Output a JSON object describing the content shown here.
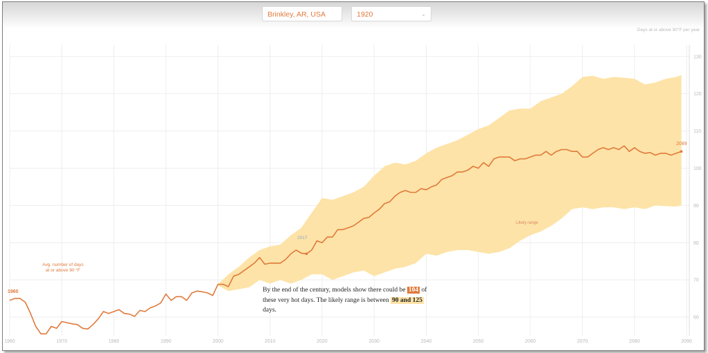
{
  "controls": {
    "location": "Brinkley, AR, USA",
    "year": "1920"
  },
  "chart_data": {
    "type": "line",
    "ylabel": "Days at or above 90°F per year",
    "xlim": [
      1960,
      2090
    ],
    "ylim": [
      55,
      132
    ],
    "x_ticks": [
      "1960",
      "1970",
      "1980",
      "1990",
      "2000",
      "2010",
      "2020",
      "2030",
      "2040",
      "2050",
      "2060",
      "2070",
      "2080",
      "2090"
    ],
    "y_ticks": [
      "60",
      "70",
      "80",
      "90",
      "100",
      "110",
      "120",
      "130"
    ],
    "series_label": "Avg. number of days at or above 90 °F",
    "band_label": "Likely range",
    "start_label": "1960",
    "mid_label": "2017",
    "end_label": "2089",
    "line": [
      [
        1960,
        64.5
      ],
      [
        1961,
        65
      ],
      [
        1962,
        65
      ],
      [
        1963,
        64
      ],
      [
        1964,
        61
      ],
      [
        1965,
        57.5
      ],
      [
        1966,
        55.5
      ],
      [
        1967,
        55.5
      ],
      [
        1968,
        57.5
      ],
      [
        1969,
        57
      ],
      [
        1970,
        58.8
      ],
      [
        1971,
        58.5
      ],
      [
        1972,
        58.2
      ],
      [
        1973,
        58
      ],
      [
        1974,
        57
      ],
      [
        1975,
        56.8
      ],
      [
        1976,
        58
      ],
      [
        1977,
        59.5
      ],
      [
        1978,
        61.5
      ],
      [
        1979,
        61
      ],
      [
        1980,
        61.5
      ],
      [
        1981,
        62
      ],
      [
        1982,
        61
      ],
      [
        1983,
        60.8
      ],
      [
        1984,
        60.2
      ],
      [
        1985,
        61.8
      ],
      [
        1986,
        61.5
      ],
      [
        1987,
        62.5
      ],
      [
        1988,
        63
      ],
      [
        1989,
        63.8
      ],
      [
        1990,
        66.2
      ],
      [
        1991,
        64.5
      ],
      [
        1992,
        65.5
      ],
      [
        1993,
        65.5
      ],
      [
        1994,
        64.5
      ],
      [
        1995,
        66.5
      ],
      [
        1996,
        67
      ],
      [
        1997,
        66.8
      ],
      [
        1998,
        66.5
      ],
      [
        1999,
        65.8
      ],
      [
        2000,
        68.8
      ],
      [
        2001,
        68.8
      ],
      [
        2002,
        68.2
      ],
      [
        2003,
        71
      ],
      [
        2004,
        71.5
      ],
      [
        2005,
        72.5
      ],
      [
        2006,
        73.5
      ],
      [
        2007,
        74.5
      ],
      [
        2008,
        76
      ],
      [
        2009,
        74.2
      ],
      [
        2010,
        74.5
      ],
      [
        2011,
        74.5
      ],
      [
        2012,
        74.5
      ],
      [
        2013,
        75.5
      ],
      [
        2014,
        77
      ],
      [
        2015,
        78
      ],
      [
        2016,
        77.2
      ],
      [
        2017,
        77
      ],
      [
        2018,
        78
      ],
      [
        2019,
        80.5
      ],
      [
        2020,
        80
      ],
      [
        2021,
        81.5
      ],
      [
        2022,
        81.5
      ],
      [
        2023,
        83.5
      ],
      [
        2024,
        83.5
      ],
      [
        2025,
        84
      ],
      [
        2026,
        84.5
      ],
      [
        2027,
        85.5
      ],
      [
        2028,
        86.5
      ],
      [
        2029,
        86.8
      ],
      [
        2030,
        88
      ],
      [
        2031,
        89
      ],
      [
        2032,
        90.5
      ],
      [
        2033,
        91
      ],
      [
        2034,
        92.5
      ],
      [
        2035,
        93.5
      ],
      [
        2036,
        94
      ],
      [
        2037,
        93.5
      ],
      [
        2038,
        93.5
      ],
      [
        2039,
        94.5
      ],
      [
        2040,
        94.2
      ],
      [
        2041,
        95
      ],
      [
        2042,
        95.5
      ],
      [
        2043,
        97
      ],
      [
        2044,
        97.5
      ],
      [
        2045,
        98
      ],
      [
        2046,
        99
      ],
      [
        2047,
        99
      ],
      [
        2048,
        99.5
      ],
      [
        2049,
        100.5
      ],
      [
        2050,
        100
      ],
      [
        2051,
        101.5
      ],
      [
        2052,
        100.5
      ],
      [
        2053,
        102.5
      ],
      [
        2054,
        103
      ],
      [
        2055,
        103
      ],
      [
        2056,
        103
      ],
      [
        2057,
        102
      ],
      [
        2058,
        102.5
      ],
      [
        2059,
        102.5
      ],
      [
        2060,
        103
      ],
      [
        2061,
        103.5
      ],
      [
        2062,
        103.5
      ],
      [
        2063,
        104.5
      ],
      [
        2064,
        103.5
      ],
      [
        2065,
        104.5
      ],
      [
        2066,
        105
      ],
      [
        2067,
        105
      ],
      [
        2068,
        104.5
      ],
      [
        2069,
        104.5
      ],
      [
        2070,
        103
      ],
      [
        2071,
        103
      ],
      [
        2072,
        104
      ],
      [
        2073,
        105
      ],
      [
        2074,
        105.5
      ],
      [
        2075,
        105
      ],
      [
        2076,
        105.5
      ],
      [
        2077,
        105
      ],
      [
        2078,
        106
      ],
      [
        2079,
        104.5
      ],
      [
        2080,
        105.5
      ],
      [
        2081,
        104.5
      ],
      [
        2082,
        104
      ],
      [
        2083,
        104.2
      ],
      [
        2084,
        103.5
      ],
      [
        2085,
        104
      ],
      [
        2086,
        104
      ],
      [
        2087,
        103.5
      ],
      [
        2088,
        104
      ],
      [
        2089,
        104.5
      ]
    ],
    "band_low": [
      [
        2000,
        68.5
      ],
      [
        2002,
        67
      ],
      [
        2004,
        67.5
      ],
      [
        2006,
        68
      ],
      [
        2008,
        70
      ],
      [
        2010,
        69
      ],
      [
        2012,
        70
      ],
      [
        2014,
        69
      ],
      [
        2016,
        70
      ],
      [
        2018,
        71.5
      ],
      [
        2020,
        71.5
      ],
      [
        2022,
        70
      ],
      [
        2024,
        71
      ],
      [
        2026,
        72
      ],
      [
        2028,
        72.5
      ],
      [
        2030,
        71
      ],
      [
        2032,
        72
      ],
      [
        2034,
        73
      ],
      [
        2036,
        73.5
      ],
      [
        2038,
        74.5
      ],
      [
        2040,
        77
      ],
      [
        2042,
        76.5
      ],
      [
        2044,
        77.5
      ],
      [
        2046,
        78
      ],
      [
        2048,
        78
      ],
      [
        2050,
        77.5
      ],
      [
        2052,
        77
      ],
      [
        2054,
        77.5
      ],
      [
        2056,
        78.5
      ],
      [
        2058,
        80.5
      ],
      [
        2060,
        82
      ],
      [
        2062,
        83
      ],
      [
        2064,
        84.5
      ],
      [
        2066,
        86.5
      ],
      [
        2068,
        89
      ],
      [
        2070,
        89.5
      ],
      [
        2072,
        89
      ],
      [
        2074,
        89.5
      ],
      [
        2076,
        89.5
      ],
      [
        2078,
        89
      ],
      [
        2080,
        89.5
      ],
      [
        2082,
        89
      ],
      [
        2084,
        90
      ],
      [
        2086,
        89.8
      ],
      [
        2088,
        89.7
      ],
      [
        2089,
        90
      ]
    ],
    "band_high": [
      [
        2000,
        68.8
      ],
      [
        2002,
        71.5
      ],
      [
        2004,
        73.5
      ],
      [
        2006,
        76
      ],
      [
        2008,
        78
      ],
      [
        2010,
        79
      ],
      [
        2012,
        79.5
      ],
      [
        2014,
        82
      ],
      [
        2016,
        84
      ],
      [
        2018,
        88
      ],
      [
        2020,
        92
      ],
      [
        2022,
        91.5
      ],
      [
        2024,
        92.5
      ],
      [
        2026,
        93.5
      ],
      [
        2028,
        95
      ],
      [
        2030,
        98
      ],
      [
        2032,
        100.5
      ],
      [
        2034,
        101.5
      ],
      [
        2036,
        101
      ],
      [
        2038,
        102
      ],
      [
        2040,
        104
      ],
      [
        2042,
        105.5
      ],
      [
        2044,
        106.5
      ],
      [
        2046,
        107.5
      ],
      [
        2048,
        109
      ],
      [
        2050,
        110.5
      ],
      [
        2052,
        111.5
      ],
      [
        2054,
        113.5
      ],
      [
        2056,
        115.5
      ],
      [
        2058,
        116
      ],
      [
        2060,
        116
      ],
      [
        2062,
        118
      ],
      [
        2064,
        119
      ],
      [
        2066,
        120
      ],
      [
        2068,
        122
      ],
      [
        2070,
        124.5
      ],
      [
        2072,
        124.8
      ],
      [
        2074,
        124
      ],
      [
        2076,
        124.5
      ],
      [
        2078,
        124.3
      ],
      [
        2080,
        124
      ],
      [
        2082,
        122.5
      ],
      [
        2084,
        123
      ],
      [
        2086,
        124
      ],
      [
        2088,
        124.5
      ],
      [
        2089,
        125
      ]
    ],
    "annotation": {
      "before": "By the end of the century, models show there could be",
      "value": "104",
      "middle": "of these very hot days. The likely range is between",
      "range": "90 and 125",
      "after": "days."
    },
    "colors": {
      "line": "#e0793a",
      "band": "#fde3a7",
      "grid": "#eeeeee",
      "tick": "#b8b8b8"
    }
  }
}
